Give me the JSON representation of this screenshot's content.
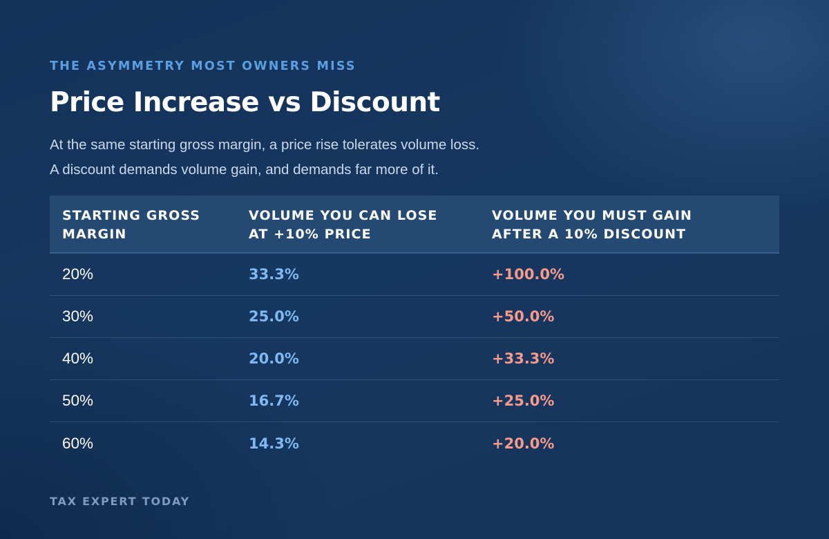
{
  "eyebrow": "THE ASYMMETRY MOST OWNERS MISS",
  "title": "Price Increase vs Discount",
  "subtitle": {
    "line1": "At the same starting gross margin, a price rise tolerates volume loss.",
    "line2": "A discount demands volume gain, and demands far more of it."
  },
  "table": {
    "headers": [
      {
        "line1": "STARTING GROSS",
        "line2": "MARGIN"
      },
      {
        "line1": "VOLUME YOU CAN LOSE",
        "line2": "AT +10% PRICE"
      },
      {
        "line1": "VOLUME YOU MUST GAIN",
        "line2": "AFTER A 10% DISCOUNT"
      }
    ],
    "rows": [
      {
        "margin": "20%",
        "lose": "33.3%",
        "gain": "+100.0%"
      },
      {
        "margin": "30%",
        "lose": "25.0%",
        "gain": "+50.0%"
      },
      {
        "margin": "40%",
        "lose": "20.0%",
        "gain": "+33.3%"
      },
      {
        "margin": "50%",
        "lose": "16.7%",
        "gain": "+25.0%"
      },
      {
        "margin": "60%",
        "lose": "14.3%",
        "gain": "+20.0%"
      }
    ]
  },
  "footer": "TAX EXPERT TODAY",
  "colors": {
    "background": "#15345b",
    "eyebrow": "#5b9fe0",
    "header_bg": "#244a74",
    "lose_value": "#7fb8f2",
    "gain_value": "#f79a8a",
    "footer": "#7f9cc0"
  }
}
